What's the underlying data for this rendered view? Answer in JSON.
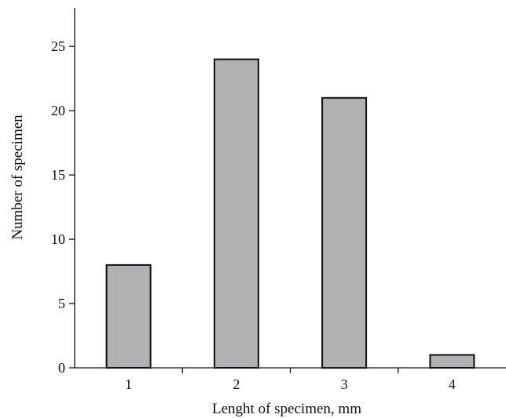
{
  "chart_data": {
    "type": "bar",
    "title": "",
    "xlabel": "Lenght of specimen, mm",
    "ylabel": "Number of specimen",
    "categories": [
      "1",
      "2",
      "3",
      "4"
    ],
    "values": [
      8,
      24,
      21,
      1
    ],
    "ylim": [
      0,
      28
    ],
    "yticks": [
      0,
      5,
      10,
      15,
      20,
      25
    ],
    "grid": false,
    "legend": "none",
    "colors": {
      "bar_fill": "#b0b1b3",
      "bar_stroke": "#111111",
      "axis": "#111111",
      "text": "#111111"
    }
  }
}
